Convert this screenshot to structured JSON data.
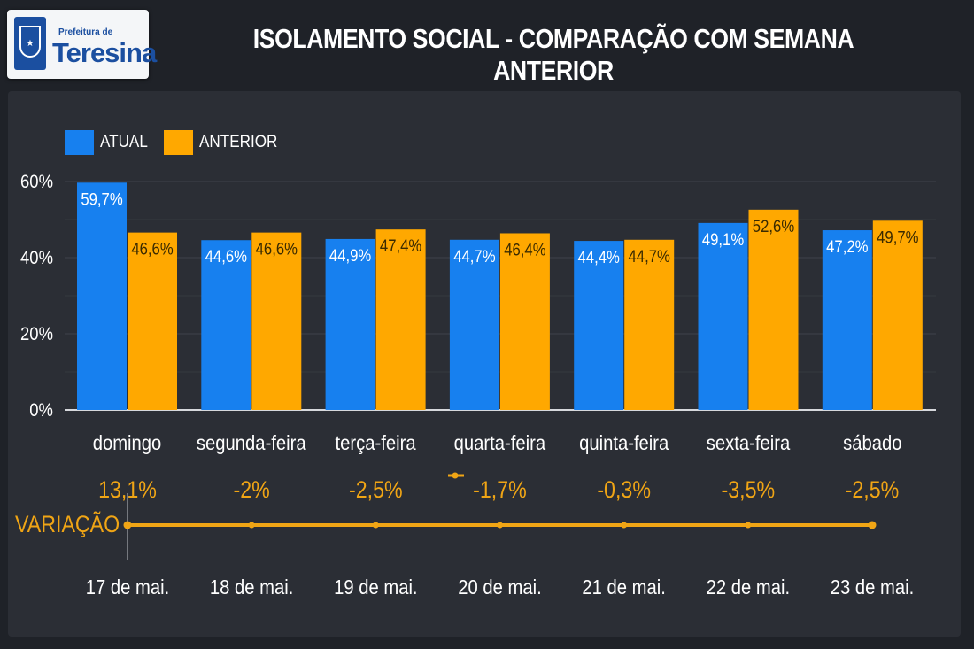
{
  "header": {
    "logo_small": "Prefeitura de",
    "logo_big": "Teresina",
    "title": "ISOLAMENTO SOCIAL - COMPARAÇÃO COM SEMANA ANTERIOR"
  },
  "colors": {
    "atual": "#1780ef",
    "anterior": "#ffa800",
    "variation": "#f0a515",
    "background": "#1f2228",
    "panel": "#2b2e35"
  },
  "chart_data": {
    "type": "bar",
    "title": "ISOLAMENTO SOCIAL - COMPARAÇÃO COM SEMANA ANTERIOR",
    "categories": [
      "domingo",
      "segunda-feira",
      "terça-feira",
      "quarta-feira",
      "quinta-feira",
      "sexta-feira",
      "sábado"
    ],
    "series": [
      {
        "name": "ATUAL",
        "values": [
          59.7,
          44.6,
          44.9,
          44.7,
          44.4,
          49.1,
          47.2
        ],
        "labels": [
          "59,7%",
          "44,6%",
          "44,9%",
          "44,7%",
          "44,4%",
          "49,1%",
          "47,2%"
        ]
      },
      {
        "name": "ANTERIOR",
        "values": [
          46.6,
          46.6,
          47.4,
          46.4,
          44.7,
          52.6,
          49.7
        ],
        "labels": [
          "46,6%",
          "46,6%",
          "47,4%",
          "46,4%",
          "44,7%",
          "52,6%",
          "49,7%"
        ]
      }
    ],
    "yticks": [
      "0%",
      "20%",
      "40%",
      "60%"
    ],
    "ytick_values": [
      0,
      20,
      40,
      60
    ],
    "ylim": [
      0,
      60
    ],
    "grid": true,
    "legend": "top-left",
    "variation": {
      "label": "VARIAÇÃO",
      "values": [
        13.1,
        -2,
        -2.5,
        -1.7,
        -0.3,
        -3.5,
        -2.5
      ],
      "labels": [
        "13,1%",
        "-2%",
        "-2,5%",
        "-1,7%",
        "-0,3%",
        "-3,5%",
        "-2,5%"
      ],
      "dates": [
        "17 de mai.",
        "18 de mai.",
        "19 de mai.",
        "20 de mai.",
        "21 de mai.",
        "22 de mai.",
        "23 de mai."
      ]
    }
  }
}
